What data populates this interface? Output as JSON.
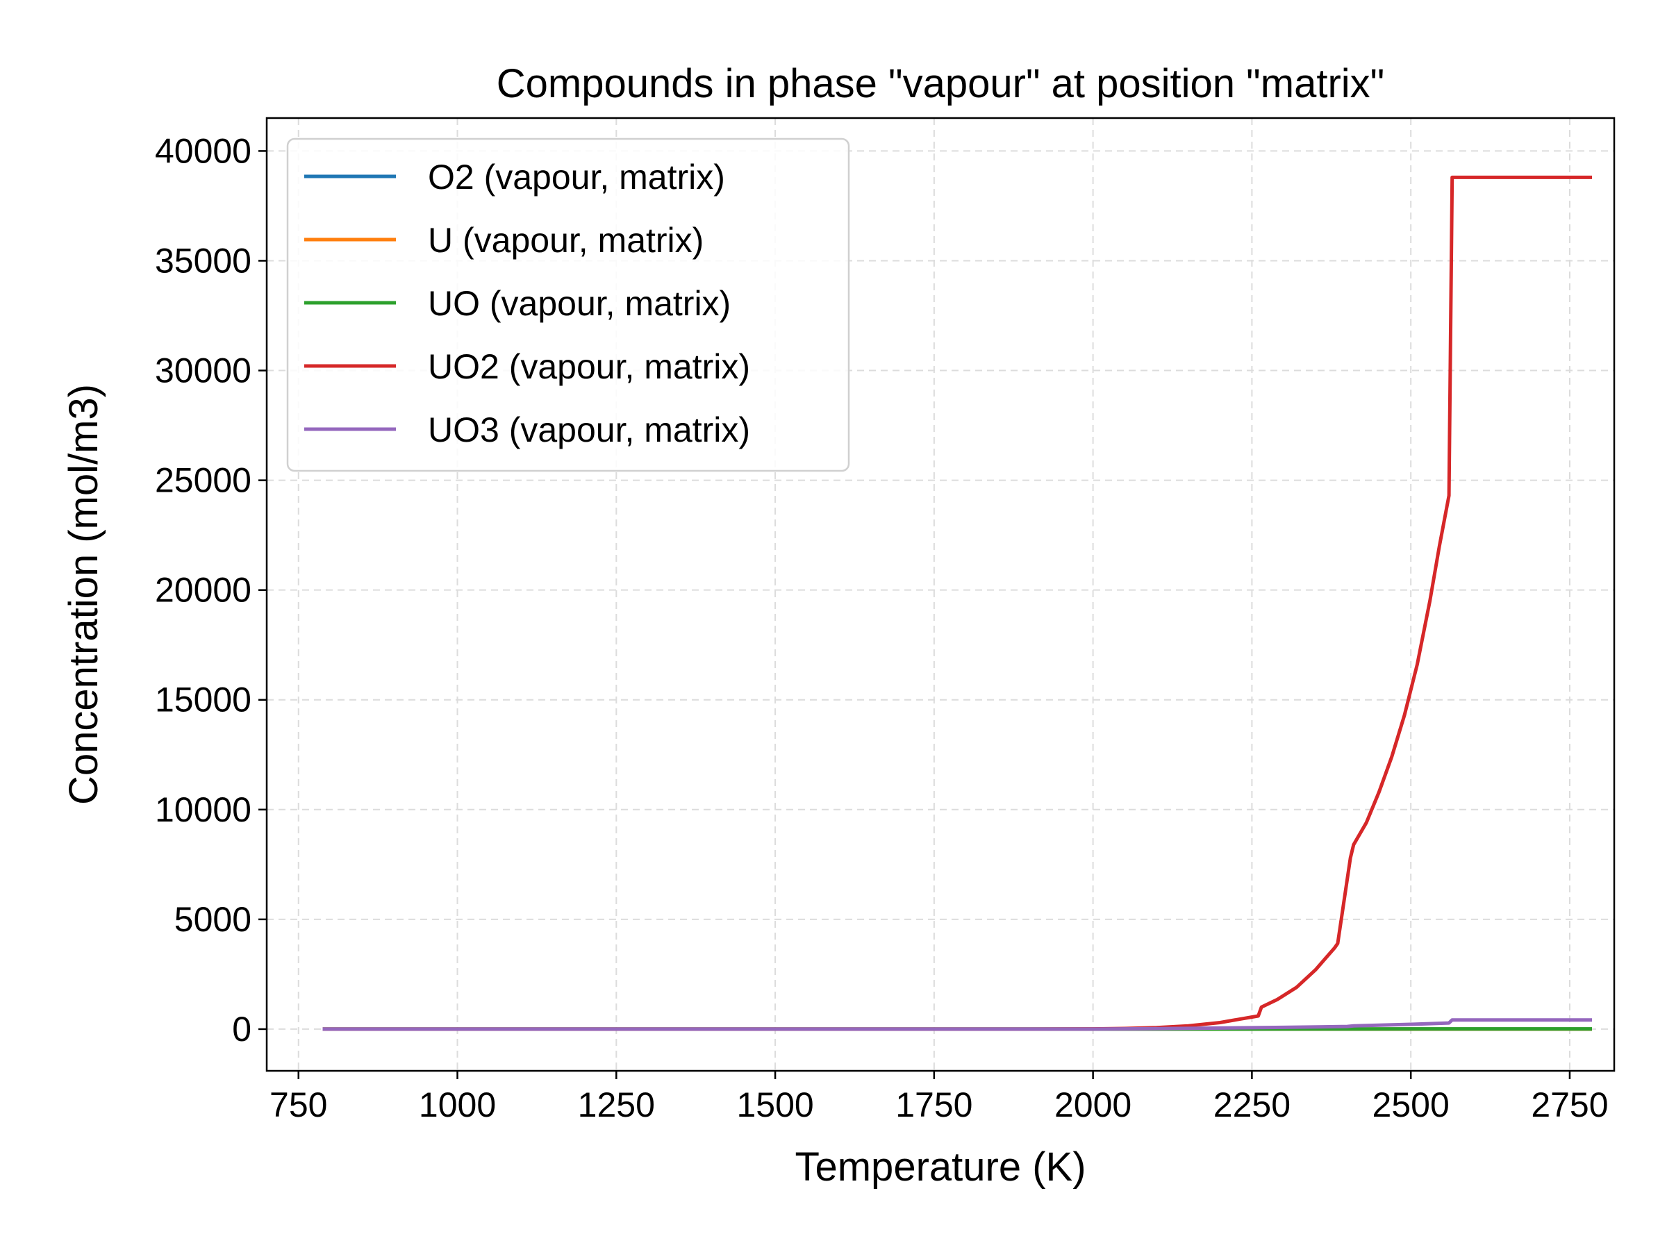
{
  "chart_data": {
    "type": "line",
    "title": "Compounds in phase \"vapour\" at position \"matrix\"",
    "xlabel": "Temperature (K)",
    "ylabel": "Concentration (mol/m3)",
    "xlim": [
      700,
      2820
    ],
    "ylim": [
      -1900,
      41500
    ],
    "xticks": [
      750,
      1000,
      1250,
      1500,
      1750,
      2000,
      2250,
      2500,
      2750
    ],
    "yticks": [
      0,
      5000,
      10000,
      15000,
      20000,
      25000,
      30000,
      35000,
      40000
    ],
    "grid": true,
    "legend_position": "top-left",
    "series": [
      {
        "name": "O2 (vapour, matrix)",
        "color": "#1f77b4",
        "x": [
          788,
          2000,
          2565,
          2785
        ],
        "y": [
          0,
          0,
          0,
          0
        ]
      },
      {
        "name": "U (vapour, matrix)",
        "color": "#ff7f0e",
        "x": [
          788,
          2000,
          2565,
          2785
        ],
        "y": [
          0,
          0,
          0,
          0
        ]
      },
      {
        "name": "UO (vapour, matrix)",
        "color": "#2ca02c",
        "x": [
          788,
          2000,
          2400,
          2565,
          2785
        ],
        "y": [
          0,
          0,
          5,
          10,
          10
        ]
      },
      {
        "name": "UO2 (vapour, matrix)",
        "color": "#d62728",
        "x": [
          788,
          1900,
          2000,
          2050,
          2100,
          2150,
          2200,
          2230,
          2260,
          2265,
          2290,
          2320,
          2350,
          2380,
          2385,
          2405,
          2410,
          2430,
          2450,
          2470,
          2490,
          2510,
          2530,
          2545,
          2560,
          2565,
          2570,
          2785
        ],
        "y": [
          0,
          0,
          10,
          30,
          70,
          150,
          300,
          450,
          600,
          1000,
          1350,
          1900,
          2700,
          3700,
          3900,
          7800,
          8400,
          9400,
          10800,
          12400,
          14300,
          16600,
          19500,
          22000,
          24300,
          38800,
          38800,
          38800
        ]
      },
      {
        "name": "UO3 (vapour, matrix)",
        "color": "#9467bd",
        "x": [
          788,
          2000,
          2100,
          2200,
          2300,
          2400,
          2410,
          2500,
          2560,
          2565,
          2570,
          2785
        ],
        "y": [
          0,
          0,
          20,
          50,
          80,
          120,
          150,
          220,
          280,
          420,
          420,
          420
        ]
      }
    ]
  }
}
